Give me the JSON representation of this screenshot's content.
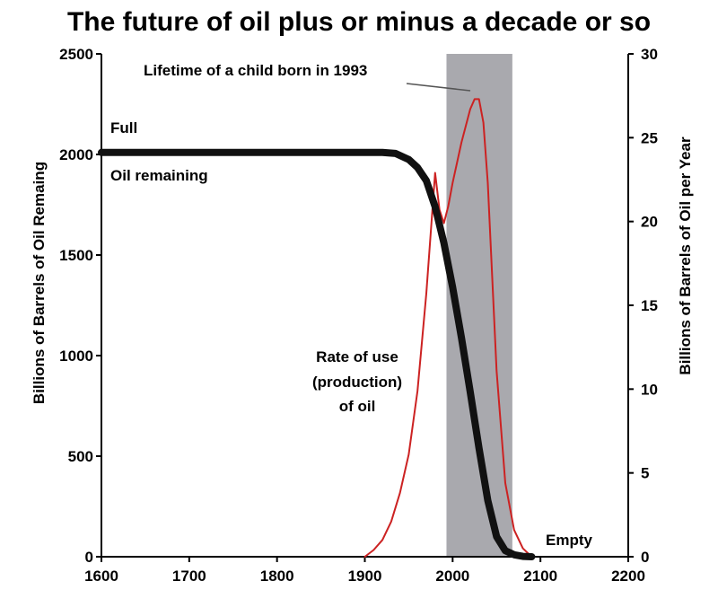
{
  "chart_data": {
    "type": "line",
    "title": "The future of oil plus or minus a decade or so",
    "xlabel": "",
    "ylabel_left": "Billions of Barrels of Oil Remaing",
    "ylabel_right": "Billions of Barrels of Oil per Year",
    "xlim": [
      1600,
      2200
    ],
    "ylim_left": [
      0,
      2500
    ],
    "ylim_right": [
      0,
      30
    ],
    "x_ticks": [
      "1600",
      "1700",
      "1800",
      "1900",
      "2000",
      "2100",
      "2200"
    ],
    "y_left_ticks": [
      "0",
      "500",
      "1000",
      "1500",
      "2000",
      "2500"
    ],
    "y_right_ticks": [
      "0",
      "5",
      "10",
      "15",
      "20",
      "25",
      "30"
    ],
    "grid": false,
    "shaded_region": {
      "x_start": 1993,
      "x_end": 2068,
      "label": "Lifetime of a child born in 1993",
      "color": "#a9a9ae"
    },
    "series": [
      {
        "name": "Oil remaining",
        "axis": "left",
        "color": "#111111",
        "x": [
          1600,
          1700,
          1800,
          1900,
          1920,
          1935,
          1950,
          1960,
          1970,
          1980,
          1990,
          2000,
          2010,
          2020,
          2030,
          2040,
          2050,
          2060,
          2070,
          2080,
          2090
        ],
        "y": [
          2010,
          2010,
          2010,
          2010,
          2010,
          2005,
          1975,
          1935,
          1870,
          1740,
          1560,
          1340,
          1090,
          820,
          540,
          280,
          100,
          30,
          10,
          2,
          0
        ]
      },
      {
        "name": "Rate of use (production) of oil",
        "axis": "right",
        "color": "#cc2222",
        "x": [
          1900,
          1910,
          1920,
          1930,
          1940,
          1950,
          1960,
          1970,
          1975,
          1980,
          1985,
          1990,
          1995,
          2000,
          2010,
          2020,
          2025,
          2030,
          2035,
          2040,
          2045,
          2050,
          2060,
          2070,
          2080,
          2090
        ],
        "y": [
          0,
          0.4,
          1.0,
          2.1,
          3.8,
          6.1,
          9.9,
          15.7,
          19.3,
          22.9,
          20.7,
          19.9,
          20.9,
          22.3,
          24.7,
          26.7,
          27.3,
          27.3,
          25.9,
          22.3,
          16.7,
          11.1,
          4.4,
          1.6,
          0.5,
          0
        ]
      }
    ],
    "annotations": [
      {
        "text": "Full"
      },
      {
        "text": "Oil remaining"
      },
      {
        "text": "Rate of use"
      },
      {
        "text": "(production)"
      },
      {
        "text": "of oil"
      },
      {
        "text": "Empty"
      }
    ]
  }
}
